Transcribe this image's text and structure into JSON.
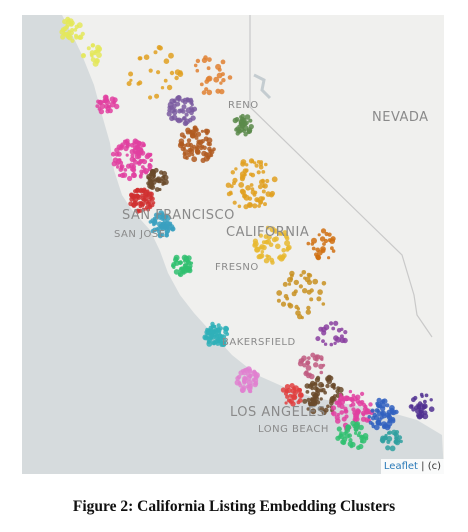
{
  "map": {
    "labels": {
      "reno": "RENO",
      "nevada": "NEVADA",
      "san_francisco": "SAN FRANCISCO",
      "san_jose": "SAN JOSE",
      "california": "CALIFORNIA",
      "fresno": "FRESNO",
      "bakersfield": "BAKERSFIELD",
      "los_angeles": "LOS ANGELES",
      "long_beach": "LONG BEACH"
    },
    "attribution": {
      "link": "Leaflet",
      "text": "| (c)"
    }
  },
  "caption": "Figure 2: California Listing Embedding Clusters"
}
